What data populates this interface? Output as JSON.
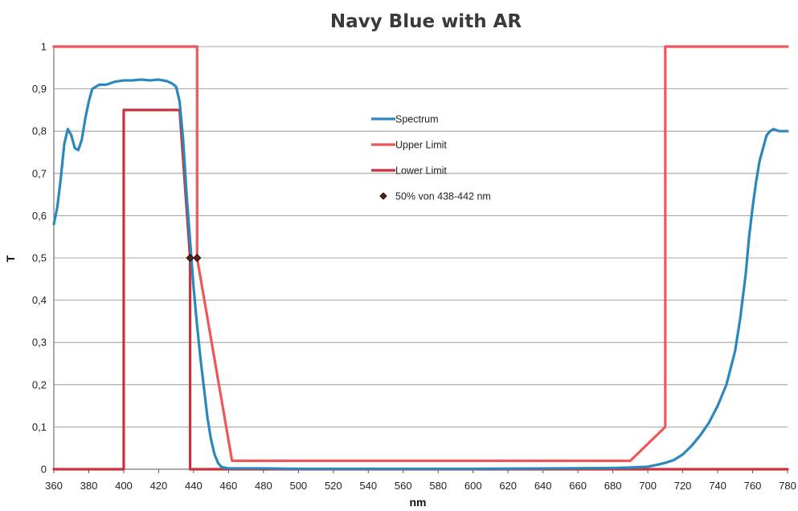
{
  "chart_data": {
    "type": "line",
    "title": "Navy Blue with AR",
    "xlabel": "nm",
    "ylabel": "T",
    "xlim": [
      360,
      780
    ],
    "ylim": [
      0,
      1
    ],
    "grid": true,
    "legend_position": "center-top",
    "x_ticks": [
      "360",
      "380",
      "400",
      "420",
      "440",
      "460",
      "480",
      "500",
      "520",
      "540",
      "560",
      "580",
      "600",
      "620",
      "640",
      "660",
      "680",
      "700",
      "720",
      "740",
      "760",
      "780"
    ],
    "y_ticks": [
      "0",
      "0,1",
      "0,2",
      "0,3",
      "0,4",
      "0,5",
      "0,6",
      "0,7",
      "0,8",
      "0,9",
      "1"
    ],
    "series": [
      {
        "name": "Spectrum",
        "color": "#2a88bd",
        "kind": "line",
        "points": [
          [
            360,
            0.58
          ],
          [
            362,
            0.62
          ],
          [
            364,
            0.69
          ],
          [
            366,
            0.77
          ],
          [
            368,
            0.805
          ],
          [
            370,
            0.79
          ],
          [
            372,
            0.76
          ],
          [
            374,
            0.755
          ],
          [
            376,
            0.78
          ],
          [
            378,
            0.83
          ],
          [
            380,
            0.87
          ],
          [
            382,
            0.9
          ],
          [
            384,
            0.905
          ],
          [
            386,
            0.91
          ],
          [
            390,
            0.91
          ],
          [
            395,
            0.917
          ],
          [
            400,
            0.92
          ],
          [
            405,
            0.92
          ],
          [
            410,
            0.922
          ],
          [
            415,
            0.92
          ],
          [
            420,
            0.922
          ],
          [
            425,
            0.918
          ],
          [
            428,
            0.912
          ],
          [
            430,
            0.905
          ],
          [
            432,
            0.87
          ],
          [
            434,
            0.78
          ],
          [
            436,
            0.65
          ],
          [
            438,
            0.54
          ],
          [
            440,
            0.43
          ],
          [
            442,
            0.34
          ],
          [
            444,
            0.26
          ],
          [
            446,
            0.19
          ],
          [
            448,
            0.12
          ],
          [
            450,
            0.07
          ],
          [
            452,
            0.035
          ],
          [
            454,
            0.015
          ],
          [
            456,
            0.005
          ],
          [
            460,
            0.002
          ],
          [
            480,
            0.002
          ],
          [
            500,
            0.001
          ],
          [
            540,
            0.001
          ],
          [
            560,
            0.001
          ],
          [
            600,
            0.001
          ],
          [
            650,
            0.002
          ],
          [
            680,
            0.003
          ],
          [
            690,
            0.004
          ],
          [
            700,
            0.006
          ],
          [
            705,
            0.01
          ],
          [
            710,
            0.015
          ],
          [
            715,
            0.022
          ],
          [
            720,
            0.035
          ],
          [
            725,
            0.055
          ],
          [
            730,
            0.08
          ],
          [
            735,
            0.11
          ],
          [
            740,
            0.15
          ],
          [
            745,
            0.2
          ],
          [
            750,
            0.28
          ],
          [
            753,
            0.36
          ],
          [
            756,
            0.46
          ],
          [
            758,
            0.55
          ],
          [
            760,
            0.62
          ],
          [
            762,
            0.68
          ],
          [
            764,
            0.73
          ],
          [
            766,
            0.76
          ],
          [
            768,
            0.79
          ],
          [
            770,
            0.8
          ],
          [
            772,
            0.805
          ],
          [
            775,
            0.8
          ],
          [
            778,
            0.8
          ],
          [
            780,
            0.8
          ]
        ]
      },
      {
        "name": "Upper Limit",
        "color": "#ee5757",
        "kind": "line",
        "points": [
          [
            360,
            1
          ],
          [
            442,
            1
          ],
          [
            442,
            0.5
          ],
          [
            462,
            0.02
          ],
          [
            690,
            0.02
          ],
          [
            710,
            0.1
          ],
          [
            710,
            1
          ],
          [
            780,
            1
          ]
        ]
      },
      {
        "name": "Lower Limit",
        "color": "#c8333f",
        "kind": "line",
        "points": [
          [
            360,
            0
          ],
          [
            400,
            0
          ],
          [
            400,
            0.85
          ],
          [
            432,
            0.85
          ],
          [
            438,
            0.5
          ],
          [
            438,
            0
          ],
          [
            780,
            0
          ]
        ]
      },
      {
        "name": "50% von 438-442 nm",
        "color": "#5a2020",
        "kind": "marker",
        "points": [
          [
            438,
            0.5
          ],
          [
            442,
            0.5
          ]
        ]
      }
    ]
  }
}
